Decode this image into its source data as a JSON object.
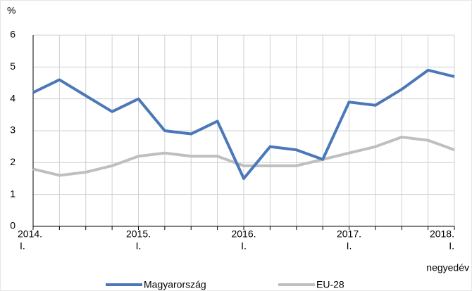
{
  "chart_data": {
    "type": "line",
    "y_label": "%",
    "x_label": "negyedév",
    "categories": [
      [
        "2014.",
        "I."
      ],
      null,
      null,
      null,
      [
        "2015.",
        "I."
      ],
      null,
      null,
      null,
      [
        "2016.",
        "I."
      ],
      null,
      null,
      null,
      [
        "2017.",
        "I."
      ],
      null,
      null,
      null,
      [
        "2018.",
        "I."
      ]
    ],
    "series": [
      {
        "name": "Magyarország",
        "color": "#4a78b8",
        "values": [
          4.2,
          4.6,
          4.1,
          3.6,
          4.0,
          3.0,
          2.9,
          3.3,
          1.5,
          2.5,
          2.4,
          2.1,
          3.9,
          3.8,
          4.3,
          4.9,
          4.7
        ]
      },
      {
        "name": "EU-28",
        "color": "#bfbfbf",
        "values": [
          1.8,
          1.6,
          1.7,
          1.9,
          2.2,
          2.3,
          2.2,
          2.2,
          1.9,
          1.9,
          1.9,
          2.1,
          2.3,
          2.5,
          2.8,
          2.7,
          2.4
        ]
      }
    ],
    "ylim": [
      0,
      6
    ],
    "yticks": [
      0,
      1,
      2,
      3,
      4,
      5,
      6
    ],
    "grid": true,
    "legend": "bottom"
  }
}
